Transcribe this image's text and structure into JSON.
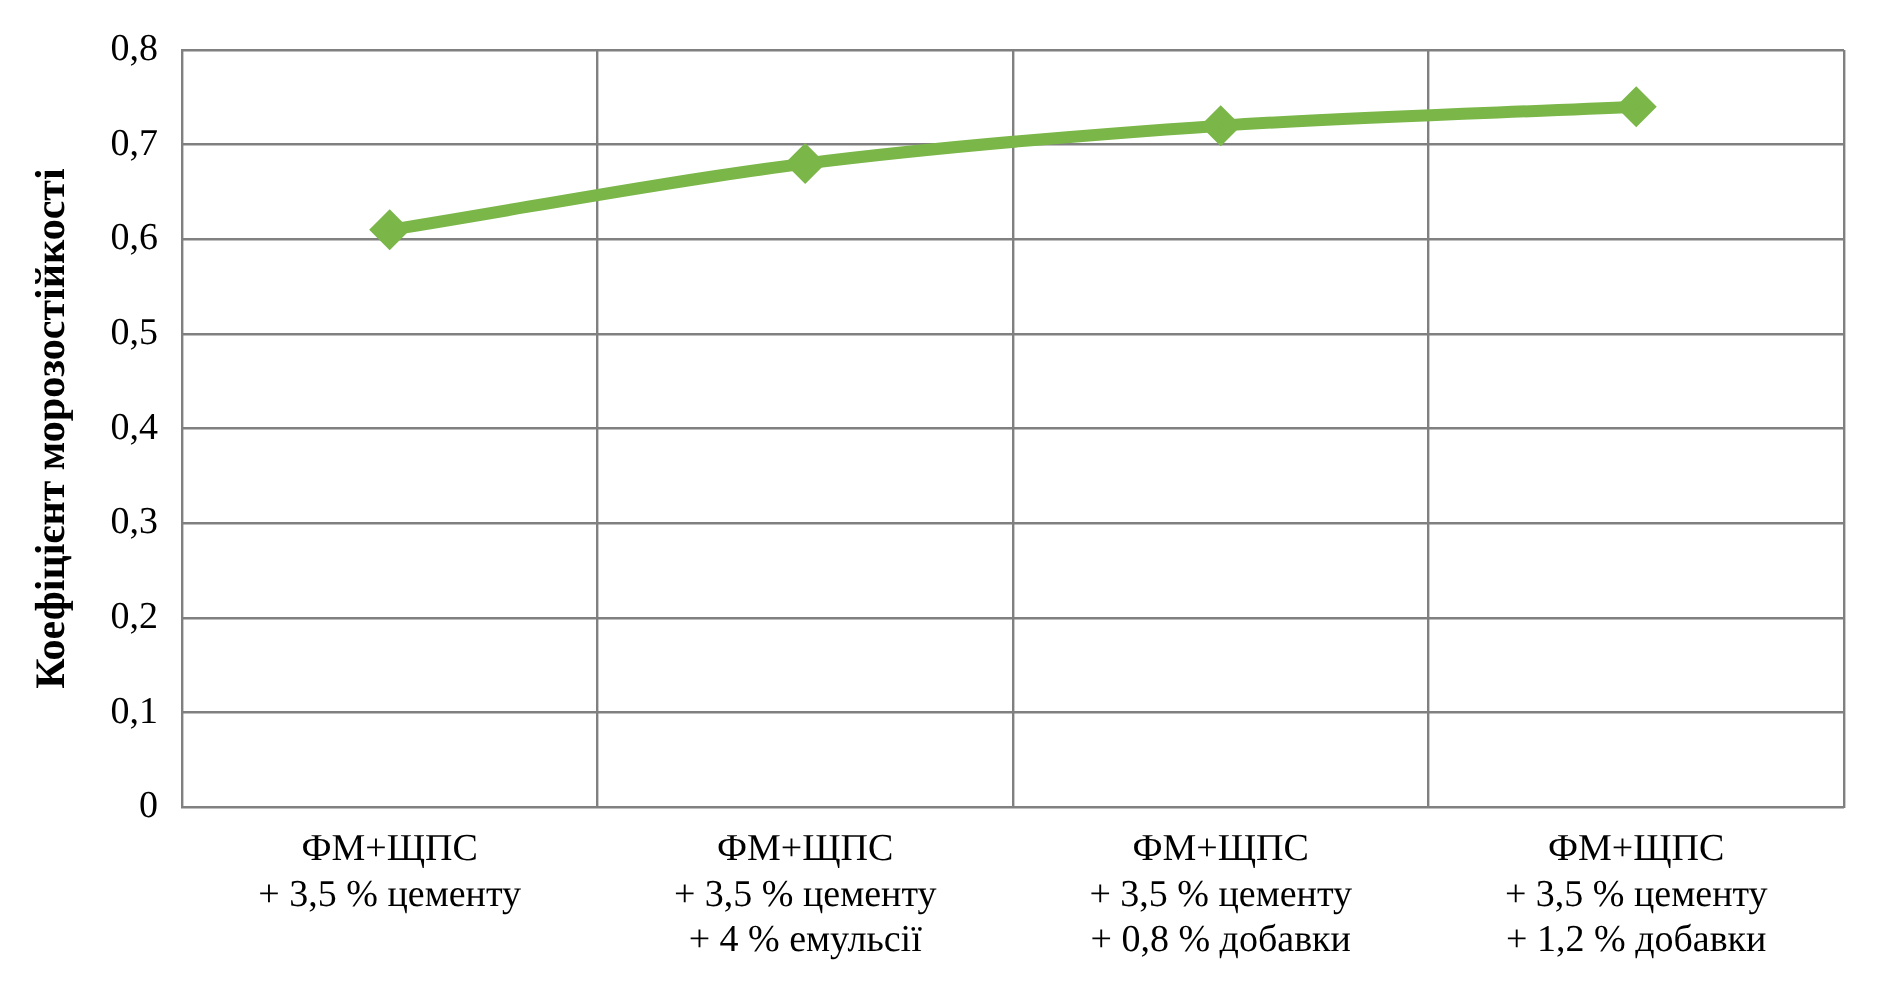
{
  "chart_data": {
    "type": "line",
    "ylabel": "Коефіцієнт морозостійкості",
    "categories": [
      "ФМ+ЩПС\n+ 3,5 % цементу",
      "ФМ+ЩПС\n+ 3,5 % цементу\n+ 4 % емульсії",
      "ФМ+ЩПС\n+ 3,5 % цементу\n+ 0,8 % добавки",
      "ФМ+ЩПС\n+ 3,5 % цементу\n+ 1,2 % добавки"
    ],
    "series": [
      {
        "color": "#7ab648",
        "values": [
          0.61,
          0.68,
          0.72,
          0.74
        ]
      }
    ],
    "ylim": [
      0,
      0.8
    ],
    "yticks": [
      0,
      {
        "value": 0.1,
        "label": "0,1"
      },
      {
        "value": 0.2,
        "label": "0,2"
      },
      {
        "value": 0.3,
        "label": "0,3"
      },
      {
        "value": 0.4,
        "label": "0,4"
      },
      {
        "value": 0.5,
        "label": "0,5"
      },
      {
        "value": 0.6,
        "label": "0,6"
      },
      {
        "value": 0.7,
        "label": "0,7"
      },
      {
        "value": 0.8,
        "label": "0,8"
      }
    ],
    "grid": true,
    "legend": false,
    "marker": "diamond",
    "line_style": "solid"
  }
}
